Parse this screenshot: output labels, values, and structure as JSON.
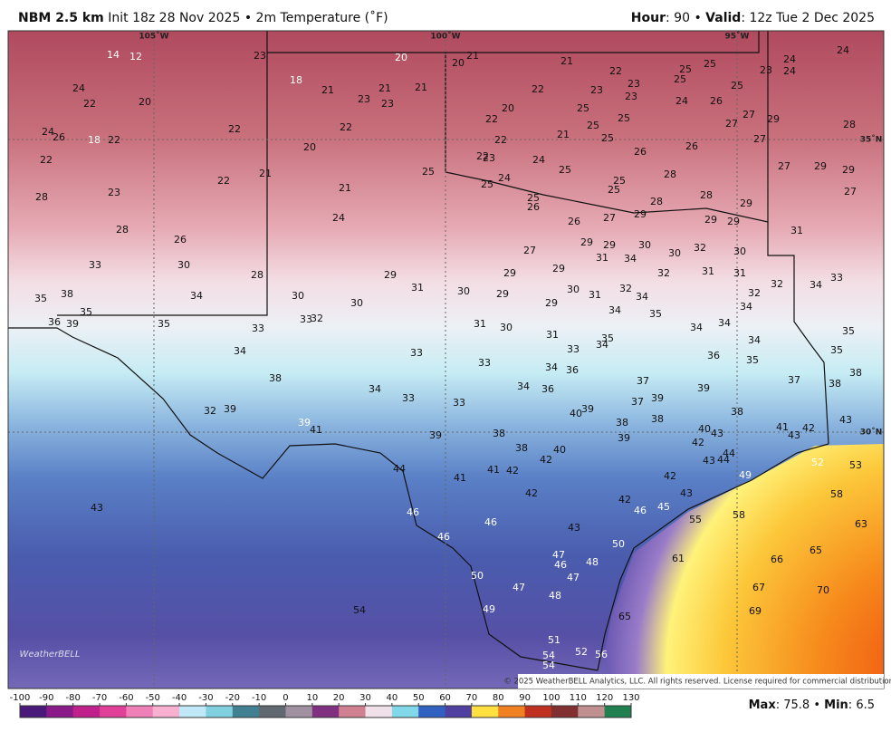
{
  "header": {
    "model": "NBM 2.5 km",
    "init": "Init 18z 28 Nov 2025",
    "separator": "•",
    "variable": "2m Temperature (˚F)",
    "hour_label": "Hour",
    "hour": 90,
    "valid_label": "Valid",
    "valid": "12z Tue 2 Dec 2025"
  },
  "map": {
    "grid_labels": [
      "105˚W",
      "100˚W",
      "95˚W",
      "35˚N",
      "30˚N"
    ],
    "temperatures": [
      14,
      12,
      23,
      20,
      20,
      21,
      21,
      22,
      23,
      25,
      25,
      23,
      24,
      24,
      24,
      18,
      21,
      23,
      21,
      23,
      21,
      22,
      23,
      23,
      25,
      25,
      24,
      22,
      20,
      22,
      22,
      20,
      22,
      25,
      25,
      25,
      24,
      26,
      27,
      27,
      29,
      28,
      24,
      26,
      18,
      22,
      22,
      21,
      25,
      26,
      26,
      27,
      22,
      20,
      22,
      23,
      24,
      25,
      24,
      25,
      21,
      22,
      27,
      29,
      29,
      28,
      25,
      25,
      25,
      28,
      23,
      21,
      25,
      26,
      28,
      28,
      29,
      27,
      26,
      27,
      29,
      29,
      29,
      31,
      28,
      24,
      26,
      27,
      29,
      29,
      30,
      30,
      32,
      30,
      33,
      30,
      28,
      29,
      29,
      29,
      31,
      34,
      32,
      31,
      31,
      32,
      33,
      35,
      38,
      34,
      30,
      31,
      30,
      29,
      29,
      30,
      31,
      32,
      34,
      32,
      34,
      36,
      39,
      35,
      35,
      33,
      33,
      32,
      30,
      31,
      30,
      34,
      35,
      34,
      34,
      34,
      35,
      31,
      33,
      34,
      35,
      34,
      35,
      34,
      33,
      33,
      34,
      36,
      36,
      35,
      38,
      38,
      34,
      33,
      33,
      34,
      36,
      37,
      39,
      37,
      38,
      32,
      39,
      37,
      39,
      40,
      39,
      38,
      43,
      39,
      41,
      39,
      38,
      38,
      38,
      40,
      43,
      41,
      43,
      42,
      39,
      42,
      38,
      40,
      42,
      44,
      43,
      44,
      49,
      52,
      53,
      44,
      41,
      41,
      42,
      42,
      42,
      43,
      42,
      46,
      45,
      58,
      43,
      46,
      46,
      55,
      58,
      63,
      43,
      46,
      50,
      47,
      46,
      48,
      47,
      61,
      66,
      65,
      50,
      47,
      48,
      67,
      70,
      54,
      49,
      69,
      65,
      51,
      54,
      52,
      56,
      54
    ],
    "copyright": "© 2025 WeatherBELL Analytics, LLC. All rights reserved. License required for commercial distribution.",
    "logo": "WeatherBELL"
  },
  "colorbar": {
    "ticks": [
      -100,
      -90,
      -80,
      -70,
      -60,
      -50,
      -40,
      -30,
      -20,
      -10,
      0,
      10,
      20,
      30,
      40,
      50,
      60,
      70,
      80,
      90,
      100,
      110,
      120,
      130
    ],
    "max_label": "Max",
    "max": 75.8,
    "min_label": "Min",
    "min": 6.5
  }
}
